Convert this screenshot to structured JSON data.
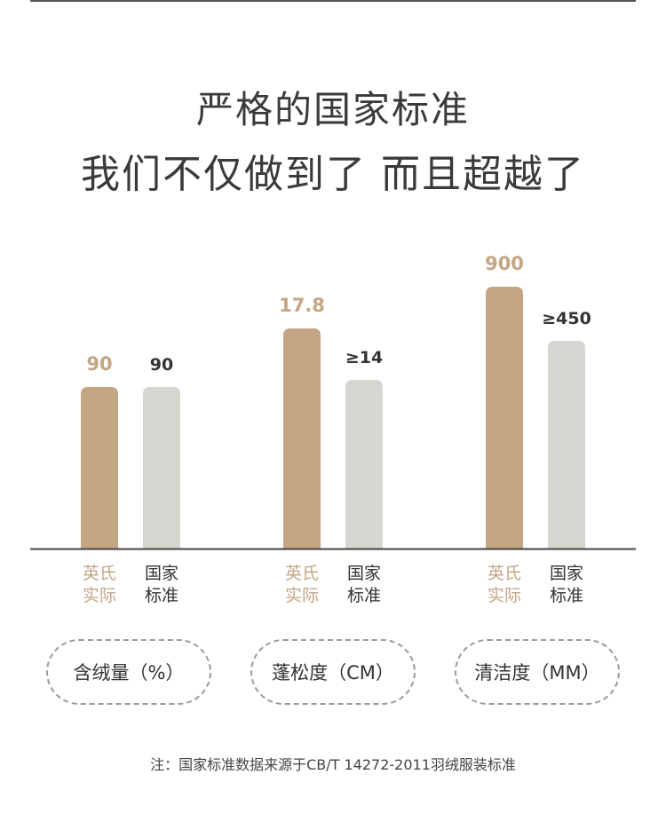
{
  "title": {
    "line1": "严格的国家标准",
    "line2": "我们不仅做到了 而且超越了"
  },
  "colors": {
    "brand": "#c4a584",
    "standard": "#d6d5cf",
    "brand_label": "#c4a584",
    "dark_label": "#333333",
    "axis": "#444444"
  },
  "chart_data": {
    "type": "bar",
    "categories": [
      "含绒量（%）",
      "蓬松度（CM）",
      "清洁度（MM）"
    ],
    "series": [
      {
        "name": "英氏实际",
        "values": [
          90,
          17.8,
          900
        ],
        "labels": [
          "90",
          "17.8",
          "900"
        ]
      },
      {
        "name": "国家标准",
        "values": [
          90,
          14,
          450
        ],
        "labels": [
          "90",
          "≥14",
          "≥450"
        ]
      }
    ],
    "series_label_lines": [
      [
        "英氏",
        "实际"
      ],
      [
        "国家",
        "标准"
      ]
    ],
    "bar_fill_levels": [
      [
        0.55,
        0.75,
        0.895
      ],
      [
        0.55,
        0.575,
        0.71
      ]
    ],
    "note": "each category uses its own scale"
  },
  "footnote": "注：国家标准数据来源于CB/T 14272-2011羽绒服装标准"
}
